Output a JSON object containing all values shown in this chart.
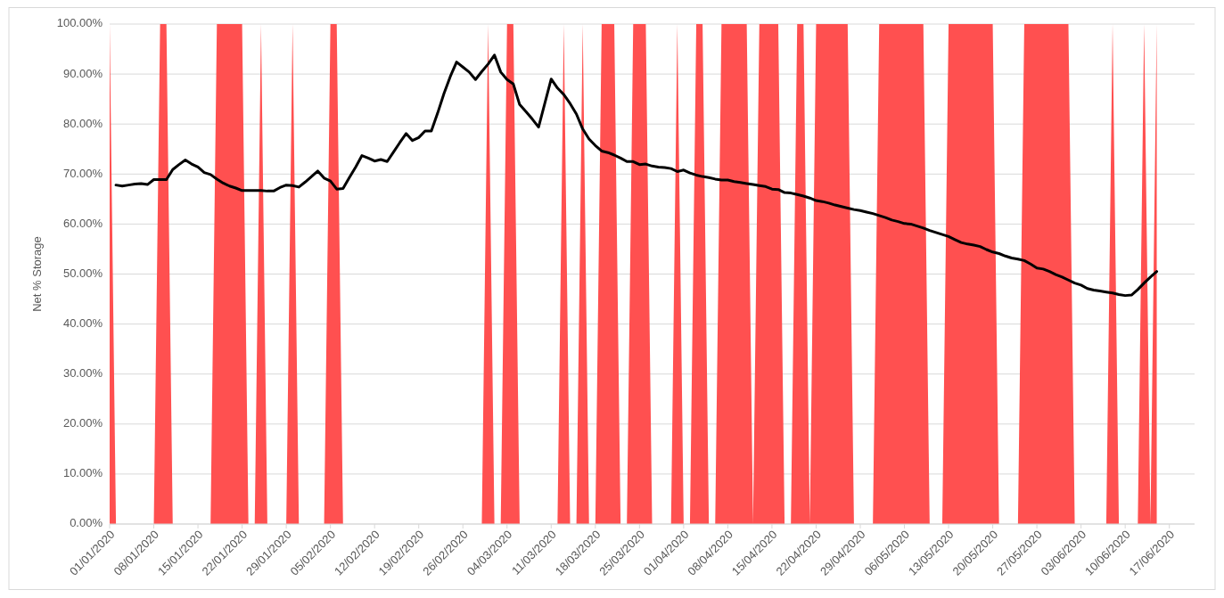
{
  "chart_data": {
    "type": "line",
    "ylabel": "Net % Storage",
    "ylim": [
      0,
      100
    ],
    "yticks": [
      {
        "value": 0,
        "label": "0.00%"
      },
      {
        "value": 10,
        "label": "10.00%"
      },
      {
        "value": 20,
        "label": "20.00%"
      },
      {
        "value": 30,
        "label": "30.00%"
      },
      {
        "value": 40,
        "label": "40.00%"
      },
      {
        "value": 50,
        "label": "50.00%"
      },
      {
        "value": 60,
        "label": "60.00%"
      },
      {
        "value": 70,
        "label": "70.00%"
      },
      {
        "value": 80,
        "label": "80.00%"
      },
      {
        "value": 90,
        "label": "90.00%"
      },
      {
        "value": 100,
        "label": "100.00%"
      }
    ],
    "xlim": [
      "2020-01-01",
      "2020-06-21"
    ],
    "xticks": [
      {
        "value": "2020-01-01",
        "label": "01/01/2020"
      },
      {
        "value": "2020-01-08",
        "label": "08/01/2020"
      },
      {
        "value": "2020-01-15",
        "label": "15/01/2020"
      },
      {
        "value": "2020-01-22",
        "label": "22/01/2020"
      },
      {
        "value": "2020-01-29",
        "label": "29/01/2020"
      },
      {
        "value": "2020-02-05",
        "label": "05/02/2020"
      },
      {
        "value": "2020-02-12",
        "label": "12/02/2020"
      },
      {
        "value": "2020-02-19",
        "label": "19/02/2020"
      },
      {
        "value": "2020-02-26",
        "label": "26/02/2020"
      },
      {
        "value": "2020-03-04",
        "label": "04/03/2020"
      },
      {
        "value": "2020-03-11",
        "label": "11/03/2020"
      },
      {
        "value": "2020-03-18",
        "label": "18/03/2020"
      },
      {
        "value": "2020-03-25",
        "label": "25/03/2020"
      },
      {
        "value": "2020-04-01",
        "label": "01/04/2020"
      },
      {
        "value": "2020-04-08",
        "label": "08/04/2020"
      },
      {
        "value": "2020-04-15",
        "label": "15/04/2020"
      },
      {
        "value": "2020-04-22",
        "label": "22/04/2020"
      },
      {
        "value": "2020-04-29",
        "label": "29/04/2020"
      },
      {
        "value": "2020-05-06",
        "label": "06/05/2020"
      },
      {
        "value": "2020-05-13",
        "label": "13/05/2020"
      },
      {
        "value": "2020-05-20",
        "label": "20/05/2020"
      },
      {
        "value": "2020-05-27",
        "label": "27/05/2020"
      },
      {
        "value": "2020-06-03",
        "label": "03/06/2020"
      },
      {
        "value": "2020-06-10",
        "label": "10/06/2020"
      },
      {
        "value": "2020-06-17",
        "label": "17/06/2020"
      }
    ],
    "grid": "y",
    "x": [
      "2020-01-01",
      "2020-01-02",
      "2020-01-03",
      "2020-01-04",
      "2020-01-05",
      "2020-01-06",
      "2020-01-07",
      "2020-01-08",
      "2020-01-09",
      "2020-01-10",
      "2020-01-11",
      "2020-01-12",
      "2020-01-13",
      "2020-01-14",
      "2020-01-15",
      "2020-01-16",
      "2020-01-17",
      "2020-01-18",
      "2020-01-19",
      "2020-01-20",
      "2020-01-21",
      "2020-01-22",
      "2020-01-23",
      "2020-01-24",
      "2020-01-25",
      "2020-01-26",
      "2020-01-27",
      "2020-01-28",
      "2020-01-29",
      "2020-01-30",
      "2020-01-31",
      "2020-02-01",
      "2020-02-02",
      "2020-02-03",
      "2020-02-04",
      "2020-02-05",
      "2020-02-06",
      "2020-02-07",
      "2020-02-08",
      "2020-02-09",
      "2020-02-10",
      "2020-02-11",
      "2020-02-12",
      "2020-02-13",
      "2020-02-14",
      "2020-02-15",
      "2020-02-16",
      "2020-02-17",
      "2020-02-18",
      "2020-02-19",
      "2020-02-20",
      "2020-02-21",
      "2020-02-22",
      "2020-02-23",
      "2020-02-24",
      "2020-02-25",
      "2020-02-26",
      "2020-02-27",
      "2020-02-28",
      "2020-02-29",
      "2020-03-01",
      "2020-03-02",
      "2020-03-03",
      "2020-03-04",
      "2020-03-05",
      "2020-03-06",
      "2020-03-07",
      "2020-03-08",
      "2020-03-09",
      "2020-03-10",
      "2020-03-11",
      "2020-03-12",
      "2020-03-13",
      "2020-03-14",
      "2020-03-15",
      "2020-03-16",
      "2020-03-17",
      "2020-03-18",
      "2020-03-19",
      "2020-03-20",
      "2020-03-21",
      "2020-03-22",
      "2020-03-23",
      "2020-03-24",
      "2020-03-25",
      "2020-03-26",
      "2020-03-27",
      "2020-03-28",
      "2020-03-29",
      "2020-03-30",
      "2020-03-31",
      "2020-04-01",
      "2020-04-02",
      "2020-04-03",
      "2020-04-04",
      "2020-04-05",
      "2020-04-06",
      "2020-04-07",
      "2020-04-08",
      "2020-04-09",
      "2020-04-10",
      "2020-04-11",
      "2020-04-12",
      "2020-04-13",
      "2020-04-14",
      "2020-04-15",
      "2020-04-16",
      "2020-04-17",
      "2020-04-18",
      "2020-04-19",
      "2020-04-20",
      "2020-04-21",
      "2020-04-22",
      "2020-04-23",
      "2020-04-24",
      "2020-04-25",
      "2020-04-26",
      "2020-04-27",
      "2020-04-28",
      "2020-04-29",
      "2020-04-30",
      "2020-05-01",
      "2020-05-02",
      "2020-05-03",
      "2020-05-04",
      "2020-05-05",
      "2020-05-06",
      "2020-05-07",
      "2020-05-08",
      "2020-05-09",
      "2020-05-10",
      "2020-05-11",
      "2020-05-12",
      "2020-05-13",
      "2020-05-14",
      "2020-05-15",
      "2020-05-16",
      "2020-05-17",
      "2020-05-18",
      "2020-05-19",
      "2020-05-20",
      "2020-05-21",
      "2020-05-22",
      "2020-05-23",
      "2020-05-24",
      "2020-05-25",
      "2020-05-26",
      "2020-05-27",
      "2020-05-28",
      "2020-05-29",
      "2020-05-30",
      "2020-05-31",
      "2020-06-01",
      "2020-06-02",
      "2020-06-03",
      "2020-06-04",
      "2020-06-05",
      "2020-06-06",
      "2020-06-07",
      "2020-06-08",
      "2020-06-09",
      "2020-06-10",
      "2020-06-11",
      "2020-06-12",
      "2020-06-13",
      "2020-06-14",
      "2020-06-15"
    ],
    "series": [
      {
        "type": "area",
        "color": "#ff5050",
        "values": [
          100,
          0,
          0,
          0,
          0,
          0,
          0,
          0,
          100,
          100,
          0,
          0,
          0,
          0,
          0,
          0,
          0,
          100,
          100,
          100,
          100,
          100,
          0,
          0,
          100,
          0,
          0,
          0,
          0,
          100,
          0,
          0,
          0,
          0,
          0,
          100,
          100,
          0,
          0,
          0,
          0,
          0,
          0,
          0,
          0,
          0,
          0,
          0,
          0,
          0,
          0,
          0,
          0,
          0,
          0,
          0,
          0,
          0,
          0,
          0,
          100,
          0,
          0,
          100,
          100,
          0,
          0,
          0,
          0,
          0,
          0,
          0,
          100,
          0,
          0,
          100,
          0,
          0,
          100,
          100,
          100,
          0,
          0,
          100,
          100,
          100,
          0,
          0,
          0,
          0,
          100,
          0,
          0,
          100,
          100,
          0,
          0,
          100,
          100,
          100,
          100,
          100,
          0,
          100,
          100,
          100,
          100,
          0,
          0,
          100,
          100,
          0,
          100,
          100,
          100,
          100,
          100,
          100,
          0,
          0,
          0,
          0,
          100,
          100,
          100,
          100,
          100,
          100,
          100,
          100,
          0,
          0,
          0,
          100,
          100,
          100,
          100,
          100,
          100,
          100,
          100,
          0,
          0,
          0,
          0,
          100,
          100,
          100,
          100,
          100,
          100,
          100,
          100,
          0,
          0,
          0,
          0,
          0,
          0,
          100,
          0,
          0,
          0,
          0,
          100,
          0,
          100
        ]
      },
      {
        "color": "#000000",
        "values": [
          null,
          67.8,
          67.6,
          67.8,
          68.0,
          68.1,
          67.9,
          68.9,
          68.9,
          68.9,
          70.9,
          71.9,
          72.8,
          72.0,
          71.4,
          70.3,
          69.9,
          69.0,
          68.2,
          67.6,
          67.2,
          66.7,
          66.7,
          66.7,
          66.7,
          66.6,
          66.6,
          67.3,
          67.8,
          67.7,
          67.4,
          68.4,
          69.5,
          70.6,
          69.2,
          68.6,
          67.0,
          67.1,
          69.3,
          71.4,
          73.7,
          73.2,
          72.6,
          72.9,
          72.5,
          74.4,
          76.3,
          78.1,
          76.7,
          77.3,
          78.6,
          78.6,
          82.2,
          86.1,
          89.5,
          92.4,
          91.4,
          90.4,
          88.9,
          90.5,
          92.0,
          93.8,
          90.4,
          88.9,
          88.0,
          83.9,
          82.5,
          81.0,
          79.4,
          84.2,
          89.0,
          87.2,
          85.9,
          84.1,
          82.0,
          79.0,
          77.0,
          75.7,
          74.6,
          74.3,
          73.8,
          73.2,
          72.5,
          72.5,
          71.9,
          72.0,
          71.6,
          71.4,
          71.3,
          71.1,
          70.5,
          70.8,
          70.2,
          69.8,
          69.5,
          69.3,
          69.0,
          68.8,
          68.8,
          68.5,
          68.3,
          68.1,
          67.9,
          67.7,
          67.5,
          67.0,
          66.9,
          66.3,
          66.2,
          65.9,
          65.6,
          65.2,
          64.7,
          64.5,
          64.2,
          63.8,
          63.5,
          63.2,
          62.9,
          62.7,
          62.4,
          62.1,
          61.7,
          61.3,
          60.8,
          60.5,
          60.1,
          60.0,
          59.6,
          59.2,
          58.7,
          58.3,
          57.9,
          57.5,
          56.9,
          56.3,
          56.0,
          55.8,
          55.5,
          54.9,
          54.4,
          54.1,
          53.6,
          53.2,
          53.0,
          52.7,
          52.0,
          51.2,
          51.0,
          50.5,
          49.9,
          49.4,
          48.8,
          48.2,
          47.8,
          47.1,
          46.8,
          46.6,
          46.4,
          46.2,
          45.9,
          45.7,
          45.8,
          46.9,
          48.2,
          49.4,
          50.5
        ]
      }
    ]
  }
}
